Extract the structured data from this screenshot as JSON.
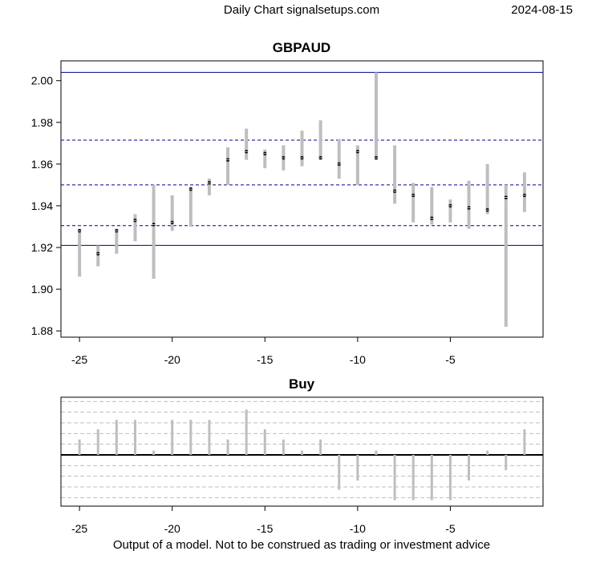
{
  "header": {
    "left": "Daily Chart signalsetups.com",
    "right": "2024-08-15"
  },
  "footer": "Output of a model. Not to be construed as trading or investment advice",
  "colors": {
    "range_bar": "#bebebe",
    "close_dot": "#000000",
    "level_line": "#00008b",
    "signal_bar": "#bebebe",
    "zero_line": "#000000",
    "grid": "#bebebe"
  },
  "chart_data": [
    {
      "type": "range",
      "title": "GBPAUD",
      "xlabel": "",
      "ylabel": "",
      "xlim": [
        -26,
        0
      ],
      "ylim": [
        1.877,
        2.0095
      ],
      "x_ticks": [
        -25,
        -20,
        -15,
        -10,
        -5
      ],
      "x_tick_labels": [
        "-25",
        "-20",
        "-15",
        "-10",
        "-5"
      ],
      "y_ticks": [
        1.88,
        1.9,
        1.92,
        1.94,
        1.96,
        1.98,
        2.0
      ],
      "y_tick_labels": [
        "1.88",
        "1.90",
        "1.92",
        "1.94",
        "1.96",
        "1.98",
        "2.00"
      ],
      "grid": false,
      "x": [
        -25,
        -24,
        -23,
        -22,
        -21,
        -20,
        -19,
        -18,
        -17,
        -16,
        -15,
        -14,
        -13,
        -12,
        -11,
        -10,
        -9,
        -8,
        -7,
        -6,
        -5,
        -4,
        -3,
        -2,
        -1
      ],
      "high": [
        1.929,
        1.921,
        1.929,
        1.936,
        1.95,
        1.945,
        1.949,
        1.953,
        1.968,
        1.977,
        1.967,
        1.969,
        1.976,
        1.981,
        1.972,
        1.969,
        2.004,
        1.969,
        1.951,
        1.949,
        1.943,
        1.952,
        1.96,
        1.95,
        1.956
      ],
      "low": [
        1.906,
        1.911,
        1.917,
        1.923,
        1.905,
        1.928,
        1.93,
        1.945,
        1.95,
        1.962,
        1.958,
        1.957,
        1.959,
        1.962,
        1.953,
        1.95,
        1.962,
        1.941,
        1.932,
        1.931,
        1.932,
        1.929,
        1.936,
        1.882,
        1.937
      ],
      "close": [
        1.928,
        1.917,
        1.928,
        1.933,
        1.931,
        1.932,
        1.948,
        1.951,
        1.962,
        1.966,
        1.965,
        1.963,
        1.963,
        1.963,
        1.96,
        1.966,
        1.963,
        1.947,
        1.945,
        1.934,
        1.94,
        1.939,
        1.938,
        1.944,
        1.945
      ],
      "levels": [
        {
          "value": 2.004,
          "style": "solid"
        },
        {
          "value": 1.9715,
          "style": "dashed"
        },
        {
          "value": 1.95,
          "style": "dashed"
        },
        {
          "value": 1.9305,
          "style": "dashed"
        },
        {
          "value": 1.921,
          "style": "solid"
        }
      ]
    },
    {
      "type": "bar",
      "title": "Buy",
      "xlabel": "",
      "ylabel": "",
      "xlim": [
        -26,
        0
      ],
      "ylim": [
        -1.2,
        1.35
      ],
      "x_ticks": [
        -25,
        -20,
        -15,
        -10,
        -5
      ],
      "x_tick_labels": [
        "-25",
        "-20",
        "-15",
        "-10",
        "-5"
      ],
      "grid": true,
      "grid_values": [
        -1.0,
        -0.75,
        -0.5,
        -0.25,
        0.25,
        0.5,
        0.75,
        1.0,
        1.25
      ],
      "x": [
        -25,
        -24,
        -23,
        -22,
        -21,
        -20,
        -19,
        -18,
        -17,
        -16,
        -15,
        -14,
        -13,
        -12,
        -11,
        -10,
        -9,
        -8,
        -7,
        -6,
        -5,
        -4,
        -3,
        -2,
        -1
      ],
      "values": [
        0.36,
        0.6,
        0.82,
        0.82,
        0.1,
        0.82,
        0.82,
        0.82,
        0.36,
        1.06,
        0.6,
        0.36,
        0.1,
        0.36,
        -0.82,
        -0.6,
        0.1,
        -1.06,
        -1.06,
        -1.06,
        -1.06,
        -0.6,
        0.1,
        -0.36,
        0.6
      ]
    }
  ]
}
